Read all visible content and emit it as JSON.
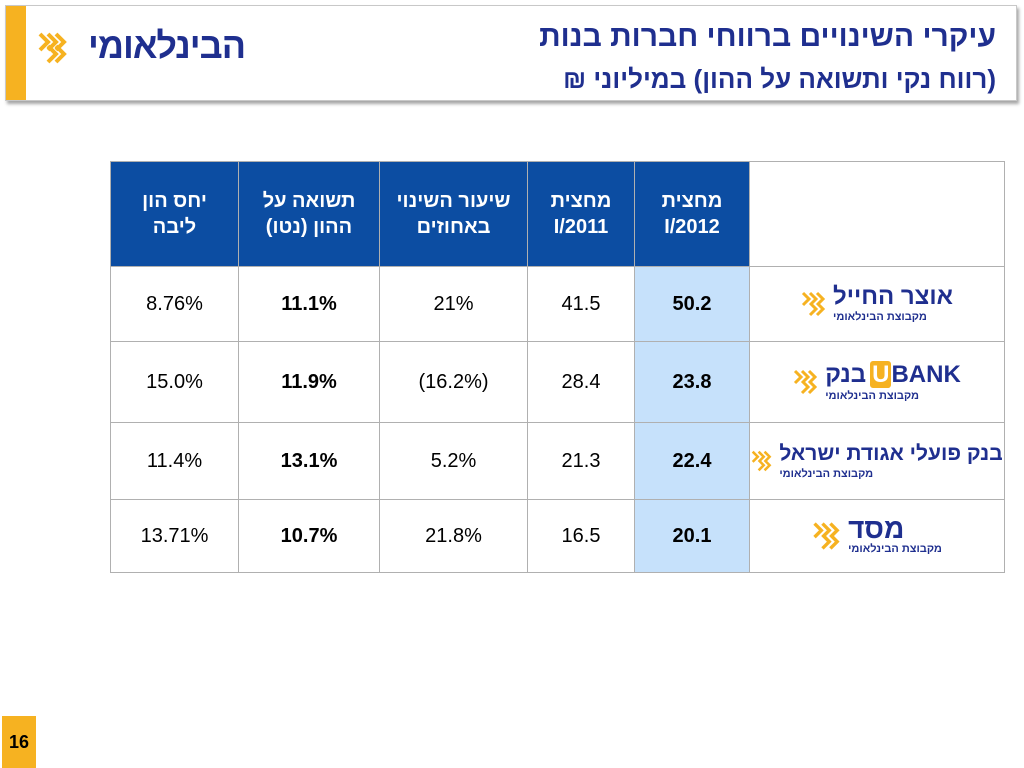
{
  "header": {
    "title_line1": "עיקרי השינויים ברווחי חברות בנות",
    "title_line2": "(רווח נקי ותשואה על ההון) במיליוני ₪",
    "brand_name": "הבינלאומי"
  },
  "table": {
    "columns": [
      "מחצית I/2012",
      "מחצית I/2011",
      "שיעור השינוי באחוזים",
      "תשואה על ההון (נטו)",
      "יחס הון ליבה"
    ],
    "col_2012_line1": "מחצית",
    "col_2012_line2": "I/2012",
    "col_2011_line1": "מחצית",
    "col_2011_line2": "I/2011",
    "col_chg_line1": "שיעור השינוי",
    "col_chg_line2": "באחוזים",
    "col_roe_line1": "תשואה על",
    "col_roe_line2": "ההון (נטו)",
    "col_cap_line1": "יחס הון",
    "col_cap_line2": "ליבה",
    "rows": [
      {
        "bank": "אוצר החייל",
        "bank_sub": "מקבוצת הבינלאומי",
        "h1_2012": "50.2",
        "h1_2011": "41.5",
        "change": "21%",
        "roe": "11.1%",
        "core_capital": "8.76%"
      },
      {
        "bank": "בנק",
        "bank_brand": "BANK",
        "bank_brand_u": "U",
        "bank_sub": "מקבוצת הבינלאומי",
        "h1_2012": "23.8",
        "h1_2011": "28.4",
        "change": "(16.2%)",
        "roe": "11.9%",
        "core_capital": "15.0%"
      },
      {
        "bank": "בנק פועלי אגודת ישראל",
        "bank_sub": "מקבוצת הבינלאומי",
        "h1_2012": "22.4",
        "h1_2011": "21.3",
        "change": "5.2%",
        "roe": "13.1%",
        "core_capital": "11.4%"
      },
      {
        "bank": "מסד",
        "bank_sub": "מקבוצת הבינלאומי",
        "h1_2012": "20.1",
        "h1_2011": "16.5",
        "change": "21.8%",
        "roe": "10.7%",
        "core_capital": "13.71%"
      }
    ]
  },
  "page_number": "16",
  "colors": {
    "brand_blue": "#1f2f8f",
    "header_cell_blue": "#0c4da2",
    "highlight_cell": "#c6e1fb",
    "accent_orange": "#f6b221"
  },
  "icons": [
    "knot-logo-icon"
  ]
}
